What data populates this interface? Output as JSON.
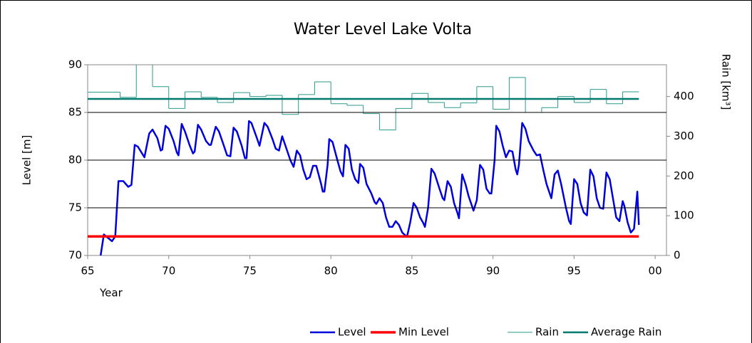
{
  "chart_data": {
    "type": "line",
    "title": "Water Level Lake Volta",
    "x_label": "Year",
    "y_label": "Level [m]",
    "y2_label": "Rain [km³]",
    "xlim": [
      65,
      100.7
    ],
    "xticks": [
      65,
      70,
      75,
      80,
      85,
      90,
      95,
      {
        "value": 100,
        "label": "00"
      }
    ],
    "ylim": [
      70,
      90
    ],
    "yticks": [
      70,
      75,
      80,
      85,
      90
    ],
    "y2lim": [
      0,
      480
    ],
    "y2ticks": [
      0,
      100,
      200,
      300,
      400
    ],
    "grid": true,
    "legend": "bottom",
    "series": [
      {
        "name": "Level",
        "color": "#0000dd",
        "step": false,
        "x": [
          65.8,
          66.0,
          66.5,
          66.7,
          66.9,
          67.2,
          67.5,
          67.7,
          67.9,
          68.1,
          68.5,
          68.8,
          69.0,
          69.3,
          69.5,
          69.6,
          69.8,
          70.0,
          70.3,
          70.5,
          70.6,
          70.8,
          71.0,
          71.3,
          71.5,
          71.6,
          71.8,
          72.0,
          72.3,
          72.5,
          72.6,
          72.9,
          73.1,
          73.4,
          73.6,
          73.8,
          74.0,
          74.2,
          74.5,
          74.7,
          74.8,
          74.95,
          75.1,
          75.4,
          75.6,
          75.9,
          76.1,
          76.4,
          76.6,
          76.8,
          77.0,
          77.2,
          77.5,
          77.7,
          77.9,
          78.1,
          78.3,
          78.5,
          78.7,
          78.9,
          79.1,
          79.4,
          79.5,
          79.6,
          79.8,
          79.9,
          80.1,
          80.4,
          80.6,
          80.75,
          80.9,
          81.1,
          81.3,
          81.5,
          81.7,
          81.8,
          82.0,
          82.2,
          82.5,
          82.7,
          82.8,
          83.0,
          83.2,
          83.4,
          83.6,
          83.8,
          84.0,
          84.2,
          84.4,
          84.6,
          84.7,
          84.9,
          85.1,
          85.3,
          85.5,
          85.7,
          85.8,
          86.0,
          86.2,
          86.4,
          86.7,
          86.9,
          87.0,
          87.2,
          87.4,
          87.6,
          87.8,
          87.9,
          88.1,
          88.3,
          88.5,
          88.7,
          88.8,
          89.0,
          89.2,
          89.4,
          89.6,
          89.8,
          89.9,
          90.1,
          90.2,
          90.4,
          90.6,
          90.8,
          91.0,
          91.2,
          91.4,
          91.5,
          91.6,
          91.8,
          92.0,
          92.2,
          92.5,
          92.7,
          92.9,
          93.1,
          93.3,
          93.5,
          93.6,
          93.8,
          94.0,
          94.2,
          94.5,
          94.7,
          94.8,
          95.0,
          95.2,
          95.4,
          95.6,
          95.8,
          96.0,
          96.2,
          96.4,
          96.6,
          96.8,
          97.0,
          97.2,
          97.4,
          97.6,
          97.8,
          98.0,
          98.1,
          98.3,
          98.5,
          98.7,
          98.9,
          99.0
        ],
        "values": [
          70,
          72.2,
          71.5,
          72,
          77.8,
          77.8,
          77.2,
          77.4,
          81.6,
          81.4,
          80.3,
          82.8,
          83.2,
          82.3,
          81.0,
          81.1,
          83.6,
          83.3,
          82.0,
          80.8,
          80.5,
          83.8,
          83.0,
          81.5,
          80.7,
          80.9,
          83.7,
          83.2,
          82.0,
          81.6,
          81.6,
          83.5,
          83.0,
          81.5,
          80.5,
          80.4,
          83.4,
          83.0,
          81.5,
          80.2,
          80.2,
          84.1,
          83.9,
          82.5,
          81.5,
          83.9,
          83.5,
          82.2,
          81.2,
          81.0,
          82.5,
          81.5,
          80.0,
          79.3,
          81.0,
          80.5,
          79.0,
          78.0,
          78.2,
          79.4,
          79.4,
          77.5,
          76.7,
          76.7,
          79.5,
          82.2,
          81.9,
          80.0,
          78.8,
          78.3,
          81.6,
          81.2,
          79.0,
          78.0,
          77.6,
          79.6,
          79.2,
          77.5,
          76.5,
          75.6,
          75.4,
          76.0,
          75.5,
          74.0,
          73.0,
          73.0,
          73.6,
          73.2,
          72.4,
          72.1,
          72.0,
          73.5,
          75.5,
          75.0,
          74.0,
          73.4,
          73.0,
          75.0,
          79.1,
          78.6,
          77.0,
          76.0,
          75.8,
          77.8,
          77.2,
          75.5,
          74.5,
          73.9,
          78.5,
          77.5,
          76.2,
          75.2,
          74.7,
          75.8,
          79.5,
          79.0,
          77.0,
          76.5,
          76.5,
          80.0,
          83.6,
          83.0,
          81.5,
          80.3,
          81.0,
          80.9,
          79.0,
          78.5,
          79.5,
          83.9,
          83.3,
          82.0,
          81.0,
          80.5,
          80.6,
          79.0,
          77.5,
          76.5,
          76.0,
          78.5,
          78.9,
          77.5,
          75.0,
          73.6,
          73.3,
          78.0,
          77.5,
          75.5,
          74.5,
          74.2,
          79.0,
          78.3,
          76.0,
          75.0,
          74.9,
          78.7,
          78.0,
          76.0,
          74.0,
          73.6,
          75.7,
          75.2,
          73.5,
          72.4,
          72.8,
          76.7,
          73.2
        ]
      },
      {
        "name": "Min Level",
        "color": "#ff0000",
        "step": false,
        "x": [
          65,
          99
        ],
        "values": [
          72,
          72
        ]
      },
      {
        "name": "Rain",
        "color": "#2a9a8a",
        "axis": "y2",
        "step": true,
        "x": [
          65,
          66,
          67,
          68,
          69,
          70,
          71,
          72,
          73,
          74,
          75,
          76,
          77,
          78,
          79,
          80,
          81,
          82,
          83,
          84,
          85,
          86,
          87,
          88,
          89,
          90,
          91,
          92,
          93,
          94,
          95,
          96,
          97,
          98
        ],
        "values": [
          411,
          411,
          398,
          490,
          425,
          370,
          412,
          398,
          385,
          410,
          400,
          403,
          355,
          405,
          437,
          382,
          378,
          357,
          316,
          370,
          408,
          385,
          372,
          384,
          425,
          368,
          448,
          360,
          372,
          400,
          385,
          418,
          382,
          412
        ]
      },
      {
        "name": "Average Rain",
        "color": "#007a6e",
        "axis": "y2",
        "step": false,
        "x": [
          65,
          99
        ],
        "values": [
          394,
          394
        ]
      }
    ]
  }
}
